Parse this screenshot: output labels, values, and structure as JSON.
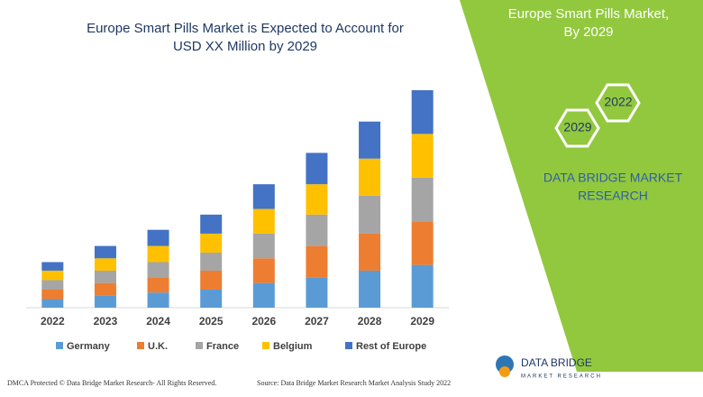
{
  "chart_data": {
    "type": "bar",
    "stacked": true,
    "title": [
      "Europe Smart Pills Market is Expected to Account for",
      "USD XX Million by 2029"
    ],
    "categories": [
      "2022",
      "2023",
      "2024",
      "2025",
      "2026",
      "2027",
      "2028",
      "2029"
    ],
    "series": [
      {
        "name": "Germany",
        "color": "#5b9bd5",
        "values": [
          9,
          13,
          16,
          19,
          26,
          32,
          39,
          45
        ]
      },
      {
        "name": "U.K.",
        "color": "#ed7d31",
        "values": [
          10,
          13,
          16,
          20,
          26,
          33,
          39,
          46
        ]
      },
      {
        "name": "France",
        "color": "#a5a5a5",
        "values": [
          10,
          13,
          16,
          19,
          26,
          33,
          40,
          46
        ]
      },
      {
        "name": "Belgium",
        "color": "#ffc000",
        "values": [
          10,
          13,
          17,
          20,
          26,
          32,
          39,
          46
        ]
      },
      {
        "name": "Rest of Europe",
        "color": "#4472c4",
        "values": [
          9,
          13,
          17,
          20,
          26,
          33,
          39,
          46
        ]
      }
    ]
  },
  "panel": {
    "heading": [
      "Europe Smart Pills Market,",
      "By 2029"
    ],
    "hex_top": "2022",
    "hex_bottom": "2029",
    "brand": [
      "DATA BRIDGE MARKET",
      "RESEARCH"
    ]
  },
  "footer": {
    "dmca": "DMCA Protected © Data Bridge Market Research- All Rights Reserved.",
    "source": "Source: Data Bridge Market Research Market Analysis Study 2022",
    "logo_name": "DATA BRIDGE",
    "logo_sub": "MARKET RESEARCH"
  }
}
